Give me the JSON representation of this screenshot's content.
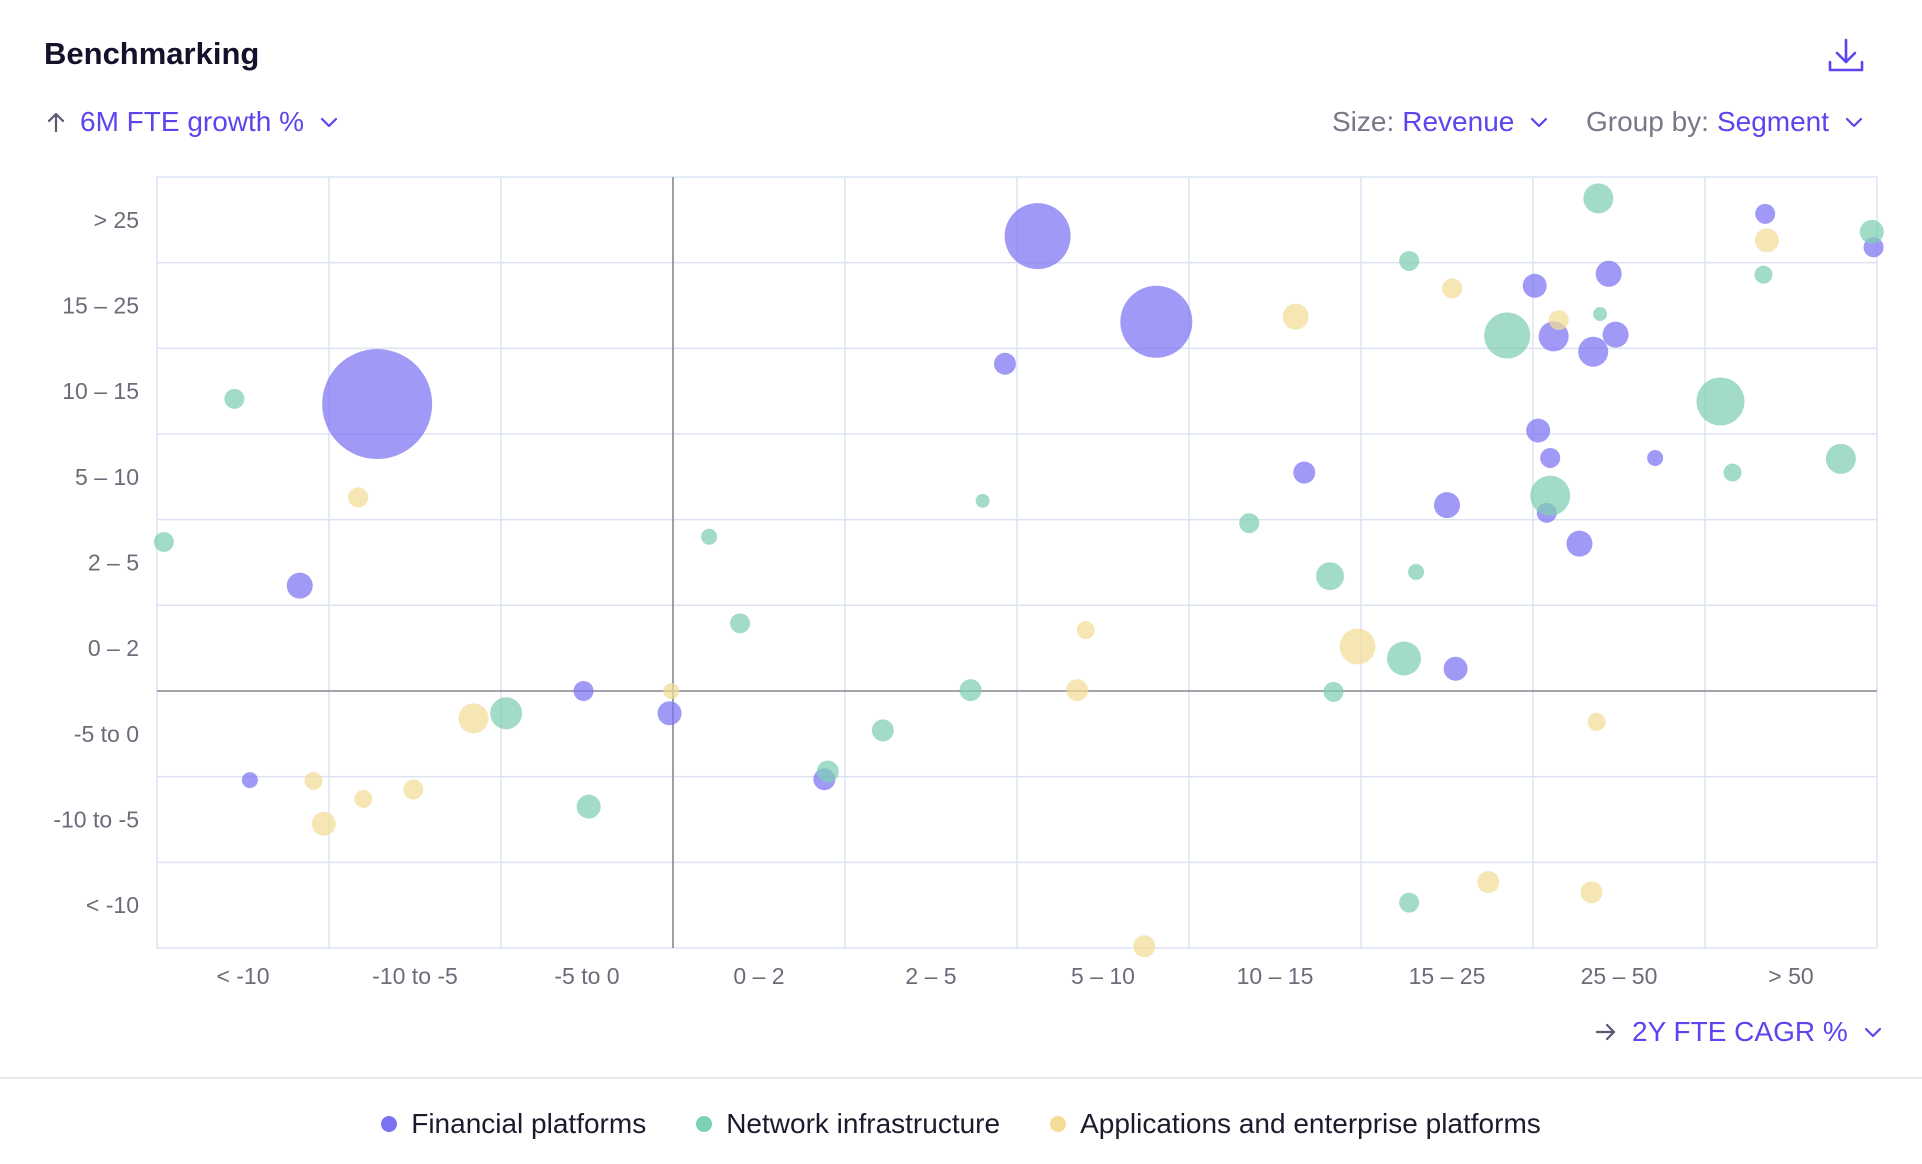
{
  "header": {
    "title": "Benchmarking"
  },
  "controls": {
    "y_metric": "6M FTE growth %",
    "size_label": "Size:",
    "size_value": "Revenue",
    "group_label": "Group by:",
    "group_value": "Segment",
    "x_metric": "2Y FTE CAGR %"
  },
  "icons": {
    "download": "download-icon",
    "up_arrow": "arrow-up-icon",
    "right_arrow": "arrow-right-icon",
    "chevron": "chevron-down-icon"
  },
  "colors": {
    "accent": "#5b45ee",
    "financial": "#7b71f2",
    "network": "#7ecfb4",
    "applications": "#f3dc96"
  },
  "chart_data": {
    "type": "scatter",
    "title": "",
    "xlabel": "2Y FTE CAGR %",
    "ylabel": "6M FTE growth %",
    "x_categories": [
      "< -10",
      "-10 to -5",
      "-5 to 0",
      "0 – 2",
      "2 – 5",
      "5 – 10",
      "10 – 15",
      "15 – 25",
      "25 – 50",
      "> 50"
    ],
    "y_categories": [
      "> 25",
      "15 – 25",
      "10 – 15",
      "5 – 10",
      "2 – 5",
      "0 – 2",
      "-5 to 0",
      "-10 to -5",
      "< -10"
    ],
    "xlim": [
      0,
      10
    ],
    "ylim": [
      0,
      9
    ],
    "x_origin_value": 3,
    "y_origin_value": 3,
    "grid": true,
    "legend_position": "bottom",
    "size_metric": "Revenue",
    "group_metric": "Segment",
    "series": [
      {
        "name": "Financial platforms",
        "color": "#7b71f2",
        "points": [
          {
            "x": 1.28,
            "y": 6.35,
            "r": 55
          },
          {
            "x": 5.12,
            "y": 8.31,
            "r": 33
          },
          {
            "x": 5.81,
            "y": 7.31,
            "r": 36
          },
          {
            "x": 4.93,
            "y": 6.82,
            "r": 11
          },
          {
            "x": 0.83,
            "y": 4.23,
            "r": 13
          },
          {
            "x": 0.54,
            "y": 1.96,
            "r": 8
          },
          {
            "x": 2.48,
            "y": 3.0,
            "r": 10
          },
          {
            "x": 2.98,
            "y": 2.74,
            "r": 12
          },
          {
            "x": 3.88,
            "y": 1.97,
            "r": 11
          },
          {
            "x": 6.67,
            "y": 5.55,
            "r": 11
          },
          {
            "x": 7.5,
            "y": 5.17,
            "r": 13
          },
          {
            "x": 7.55,
            "y": 3.26,
            "r": 12
          },
          {
            "x": 8.01,
            "y": 7.73,
            "r": 12
          },
          {
            "x": 8.12,
            "y": 7.14,
            "r": 15
          },
          {
            "x": 8.35,
            "y": 6.96,
            "r": 15
          },
          {
            "x": 8.48,
            "y": 7.16,
            "r": 13
          },
          {
            "x": 8.44,
            "y": 7.87,
            "r": 13
          },
          {
            "x": 8.03,
            "y": 6.04,
            "r": 12
          },
          {
            "x": 8.1,
            "y": 5.72,
            "r": 10
          },
          {
            "x": 8.08,
            "y": 5.08,
            "r": 10
          },
          {
            "x": 8.27,
            "y": 4.72,
            "r": 13
          },
          {
            "x": 8.71,
            "y": 5.72,
            "r": 8
          },
          {
            "x": 9.35,
            "y": 8.57,
            "r": 10
          },
          {
            "x": 9.98,
            "y": 8.18,
            "r": 10
          }
        ]
      },
      {
        "name": "Network infrastructure",
        "color": "#7ecfb4",
        "points": [
          {
            "x": 0.45,
            "y": 6.41,
            "r": 10
          },
          {
            "x": 0.04,
            "y": 4.74,
            "r": 10
          },
          {
            "x": 2.03,
            "y": 2.74,
            "r": 16
          },
          {
            "x": 2.51,
            "y": 1.65,
            "r": 12
          },
          {
            "x": 3.21,
            "y": 4.8,
            "r": 8
          },
          {
            "x": 3.39,
            "y": 3.79,
            "r": 10
          },
          {
            "x": 3.9,
            "y": 2.06,
            "r": 11
          },
          {
            "x": 4.22,
            "y": 2.54,
            "r": 11
          },
          {
            "x": 4.73,
            "y": 3.01,
            "r": 11
          },
          {
            "x": 4.8,
            "y": 5.22,
            "r": 7
          },
          {
            "x": 6.35,
            "y": 4.96,
            "r": 10
          },
          {
            "x": 6.82,
            "y": 4.34,
            "r": 14
          },
          {
            "x": 6.84,
            "y": 2.99,
            "r": 10
          },
          {
            "x": 7.25,
            "y": 3.38,
            "r": 17
          },
          {
            "x": 7.32,
            "y": 4.39,
            "r": 8
          },
          {
            "x": 7.28,
            "y": 0.53,
            "r": 10
          },
          {
            "x": 7.28,
            "y": 8.02,
            "r": 10
          },
          {
            "x": 7.85,
            "y": 7.15,
            "r": 23
          },
          {
            "x": 8.1,
            "y": 5.28,
            "r": 20
          },
          {
            "x": 8.38,
            "y": 8.75,
            "r": 15
          },
          {
            "x": 8.39,
            "y": 7.4,
            "r": 7
          },
          {
            "x": 9.09,
            "y": 6.38,
            "r": 24
          },
          {
            "x": 9.16,
            "y": 5.55,
            "r": 9
          },
          {
            "x": 9.34,
            "y": 7.86,
            "r": 9
          },
          {
            "x": 9.79,
            "y": 5.71,
            "r": 15
          },
          {
            "x": 9.97,
            "y": 8.36,
            "r": 12
          }
        ]
      },
      {
        "name": "Applications and enterprise platforms",
        "color": "#f3dc96",
        "points": [
          {
            "x": 1.17,
            "y": 5.26,
            "r": 10
          },
          {
            "x": 0.91,
            "y": 1.95,
            "r": 9
          },
          {
            "x": 1.2,
            "y": 1.74,
            "r": 9
          },
          {
            "x": 0.97,
            "y": 1.45,
            "r": 12
          },
          {
            "x": 1.49,
            "y": 1.85,
            "r": 10
          },
          {
            "x": 1.84,
            "y": 2.68,
            "r": 15
          },
          {
            "x": 2.99,
            "y": 3.0,
            "r": 8
          },
          {
            "x": 5.4,
            "y": 3.71,
            "r": 9
          },
          {
            "x": 5.35,
            "y": 3.01,
            "r": 11
          },
          {
            "x": 5.74,
            "y": 0.02,
            "r": 11
          },
          {
            "x": 6.62,
            "y": 7.37,
            "r": 13
          },
          {
            "x": 6.98,
            "y": 3.52,
            "r": 18
          },
          {
            "x": 7.53,
            "y": 7.7,
            "r": 10
          },
          {
            "x": 7.74,
            "y": 0.77,
            "r": 11
          },
          {
            "x": 8.15,
            "y": 7.33,
            "r": 10
          },
          {
            "x": 8.37,
            "y": 2.64,
            "r": 9
          },
          {
            "x": 8.34,
            "y": 0.65,
            "r": 11
          },
          {
            "x": 9.36,
            "y": 8.26,
            "r": 12
          },
          {
            "x": 9.31,
            "y": 7.92,
            "r": 0
          }
        ]
      }
    ]
  },
  "legend": {
    "items": [
      {
        "label": "Financial platforms",
        "color": "#7b71f2"
      },
      {
        "label": "Network infrastructure",
        "color": "#7ecfb4"
      },
      {
        "label": "Applications and enterprise platforms",
        "color": "#f3dc96"
      }
    ]
  }
}
